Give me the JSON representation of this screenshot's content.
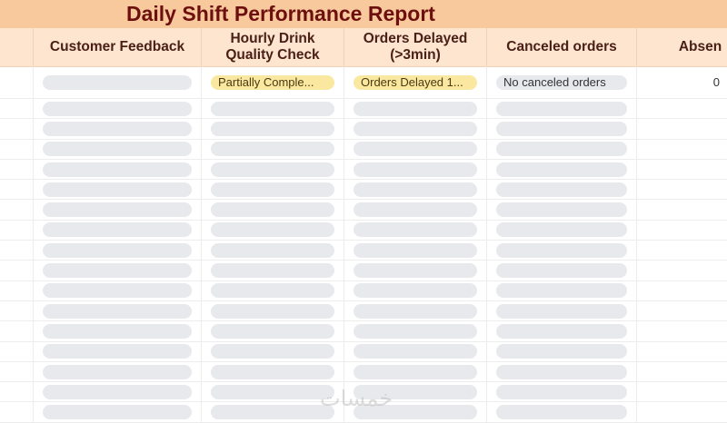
{
  "title": "Daily Shift Performance Report",
  "columns": [
    "",
    "Customer Feedback",
    "Hourly Drink Quality Check",
    "Orders Delayed (>3min)",
    "Canceled orders",
    "Absen"
  ],
  "first_row": {
    "quality_check": "Partially Comple...",
    "orders_delayed": "Orders Delayed 1...",
    "canceled_orders": "No canceled orders",
    "absences": "0"
  },
  "empty_row_count": 16,
  "colors": {
    "title_band": "#f8c99c",
    "header_bg": "#fde5d0",
    "title_text": "#6e0f0f",
    "yellow_pill": "#fbe8a0",
    "gray_pill": "#e8e9ec"
  },
  "watermark": "خمسات"
}
